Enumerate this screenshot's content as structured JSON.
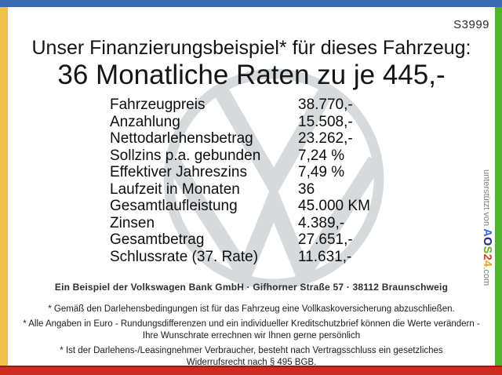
{
  "page": {
    "code": "S3999",
    "title_line1": "Unser Finanzierungsbeispiel* für dieses Fahrzeug:",
    "title_line2": "36 Monatliche Raten zu je 445,-"
  },
  "finance_table": {
    "rows": [
      {
        "label": "Fahrzeugpreis",
        "value": "38.770,-"
      },
      {
        "label": "Anzahlung",
        "value": "15.508,-"
      },
      {
        "label": "Nettodarlehensbetrag",
        "value": "23.262,-"
      },
      {
        "label": "Sollzins p.a. gebunden",
        "value": "7,24 %"
      },
      {
        "label": "Effektiver Jahreszins",
        "value": "7,49 %"
      },
      {
        "label": "Laufzeit in Monaten",
        "value": "36"
      },
      {
        "label": "Gesamtlaufleistung",
        "value": "45.000 KM"
      },
      {
        "label": "Zinsen",
        "value": "4.389,-"
      },
      {
        "label": "Gesamtbetrag",
        "value": "27.651,-"
      },
      {
        "label": "Schlussrate (37. Rate)",
        "value": "11.631,-"
      }
    ]
  },
  "footer": {
    "bank_line": "Ein Beispiel der Volkswagen Bank GmbH · Gifhorner Straße 57 · 38112 Braunschweig",
    "disclaimers": [
      "* Gemäß den Darlehensbedingungen ist für das Fahrzeug eine Vollkaskoversicherung abzuschließen.",
      "* Alle Angaben in Euro - Rundungsdifferenzen und ein individueller Kreditschutzbrief können die Werte verändern - Ihre Wunschrate errechnen wir Ihnen gerne persönlich",
      "* Ist der Darlehens-/Leasingnehmer Verbraucher, besteht nach Vertragsschluss ein gesetzliches Widerrufsrecht nach § 495 BGB."
    ]
  },
  "credit": {
    "prefix": "unterstützt von ",
    "brand_letters": [
      {
        "char": "A",
        "color": "#3b64f0"
      },
      {
        "char": "O",
        "color": "#1d2088"
      },
      {
        "char": "S",
        "color": "#6cb01f"
      },
      {
        "char": "2",
        "color": "#d93a2b"
      },
      {
        "char": "4",
        "color": "#e9a51a"
      }
    ],
    "suffix": ".com"
  },
  "watermark": {
    "icon": "volkswagen-logo"
  },
  "colors": {
    "frame_top": "#3a6ab2",
    "frame_left": "#f0c24b",
    "frame_right": "#4fb52e",
    "frame_bottom": "#cc2b20",
    "watermark_gray": "#d7dadc"
  }
}
